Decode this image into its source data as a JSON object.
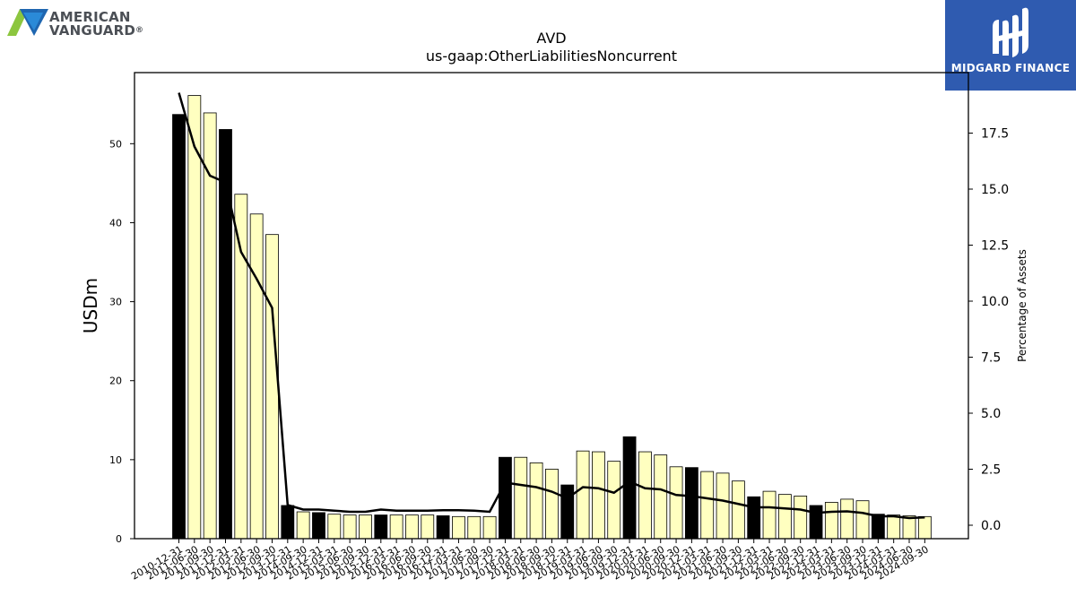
{
  "brand_left": {
    "line1": "AMERICAN",
    "line2": "VANGUARD",
    "mark": "®"
  },
  "brand_right": {
    "name": "MIDGARD FINANCE"
  },
  "colors": {
    "highlight_bar": "#000000",
    "normal_bar": "#ffffc0",
    "bar_edge": "#000000",
    "line": "#000000",
    "logo_bg": "#2f5bb0"
  },
  "chart_data": {
    "type": "bar",
    "title": "AVD",
    "subtitle": "us-gaap:OtherLiabilitiesNoncurrent",
    "ylabel": "USDm",
    "ylabel_right": "Percentage of Assets",
    "ylim": [
      0,
      59
    ],
    "ylim_right": [
      -0.6,
      20.2
    ],
    "yticks": [
      0,
      10,
      20,
      30,
      40,
      50
    ],
    "yticks_right": [
      "0.0",
      "2.5",
      "5.0",
      "7.5",
      "10.0",
      "12.5",
      "15.0",
      "17.5"
    ],
    "grid": false,
    "categories": [
      "2010-12-31",
      "2011-06-30",
      "2011-09-30",
      "2011-12-31",
      "2012-03-31",
      "2012-06-30",
      "2012-09-30",
      "2013-12-31",
      "2014-09-30",
      "2014-12-31",
      "2015-03-31",
      "2015-06-30",
      "2015-09-30",
      "2015-12-31",
      "2016-03-31",
      "2016-06-30",
      "2016-09-30",
      "2016-12-31",
      "2017-03-31",
      "2017-06-30",
      "2017-09-30",
      "2017-12-31",
      "2018-03-31",
      "2018-06-30",
      "2018-09-30",
      "2018-12-31",
      "2019-03-31",
      "2019-06-30",
      "2019-09-30",
      "2019-12-31",
      "2020-03-31",
      "2020-06-30",
      "2020-09-30",
      "2020-12-31",
      "2021-03-31",
      "2021-06-30",
      "2021-09-30",
      "2021-12-31",
      "2022-03-31",
      "2022-06-30",
      "2022-09-30",
      "2022-12-31",
      "2023-03-31",
      "2023-06-30",
      "2023-09-30",
      "2023-12-31",
      "2024-03-31",
      "2024-06-30",
      "2024-09-30"
    ],
    "series": [
      {
        "values": [
          53.7,
          56.1,
          53.9,
          51.8,
          43.6,
          41.1,
          38.5,
          4.2,
          3.4,
          3.3,
          3.1,
          3.0,
          3.0,
          3.0,
          3.0,
          3.0,
          3.0,
          2.9,
          2.8,
          2.8,
          2.8,
          10.3,
          10.3,
          9.6,
          8.8,
          6.8,
          11.1,
          11.0,
          9.8,
          12.9,
          11.0,
          10.6,
          9.1,
          9.0,
          8.5,
          8.3,
          7.3,
          5.3,
          6.0,
          5.6,
          5.4,
          4.2,
          4.6,
          5.0,
          4.8,
          3.1,
          3.0,
          2.9,
          2.8
        ]
      },
      {
        "values": [
          19.3,
          16.9,
          15.6,
          15.3,
          12.2,
          11.0,
          9.7,
          0.9,
          0.7,
          0.7,
          0.65,
          0.6,
          0.6,
          0.7,
          0.65,
          0.65,
          0.65,
          0.67,
          0.67,
          0.65,
          0.6,
          1.9,
          1.8,
          1.7,
          1.5,
          1.2,
          1.7,
          1.65,
          1.45,
          1.95,
          1.65,
          1.6,
          1.35,
          1.3,
          1.2,
          1.1,
          0.95,
          0.8,
          0.8,
          0.75,
          0.7,
          0.55,
          0.6,
          0.62,
          0.55,
          0.4,
          0.4,
          0.32,
          0.35
        ]
      }
    ],
    "highlighted": [
      "2010-12-31",
      "2011-12-31",
      "2013-12-31",
      "2014-12-31",
      "2015-12-31",
      "2016-12-31",
      "2017-12-31",
      "2018-12-31",
      "2019-12-31",
      "2020-12-31",
      "2021-12-31",
      "2022-12-31",
      "2023-12-31"
    ]
  }
}
